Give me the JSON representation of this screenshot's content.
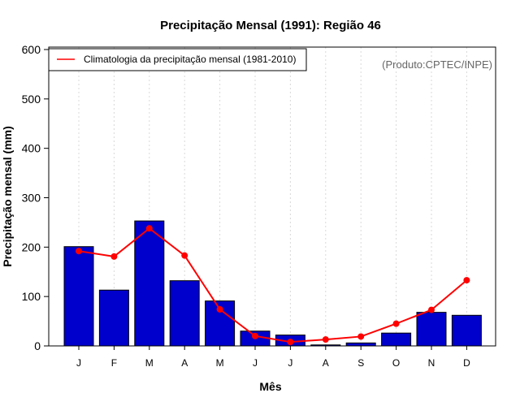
{
  "colors": {
    "bar_fill": "#0000cc",
    "bar_stroke": "#000000",
    "climatology": "#ff0000",
    "grid": "#d9d9d9"
  },
  "chart_data": {
    "type": "bar",
    "title": "Precipitação Mensal (1991): Região 46",
    "xlabel": "Mês",
    "ylabel": "Precipitação mensal (mm)",
    "credit": "(Produto:CPTEC/INPE)",
    "categories": [
      "J",
      "F",
      "M",
      "A",
      "M",
      "J",
      "J",
      "A",
      "S",
      "O",
      "N",
      "D"
    ],
    "ylim": [
      0,
      600
    ],
    "yticks": [
      0,
      100,
      200,
      300,
      400,
      500,
      600
    ],
    "grid": "vertical dotted",
    "legend_position": "top-left",
    "series": [
      {
        "name": "Precipitação mensal (1991)",
        "kind": "bar",
        "values": [
          201,
          113,
          253,
          132,
          91,
          30,
          22,
          2,
          6,
          26,
          68,
          62
        ]
      },
      {
        "name": "Climatologia da precipitação mensal (1981-2010)",
        "kind": "line",
        "values": [
          192,
          181,
          238,
          183,
          74,
          20,
          8,
          13,
          19,
          45,
          73,
          133
        ]
      }
    ]
  }
}
